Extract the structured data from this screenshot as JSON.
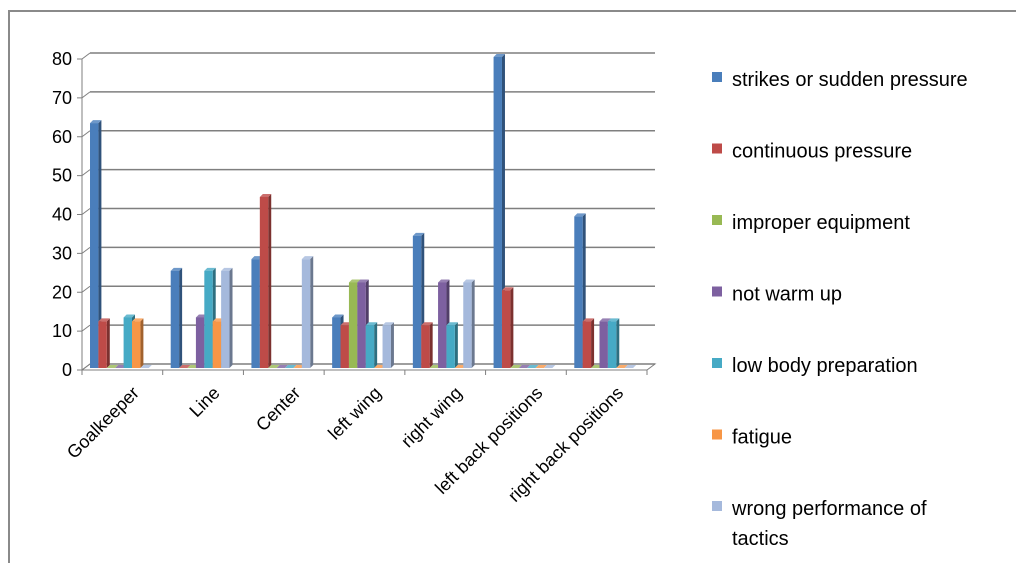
{
  "chart_data": {
    "type": "bar",
    "categories": [
      "Goalkeeper",
      "Line",
      "Center",
      "left wing",
      "right wing",
      "left back positions",
      "right back positions"
    ],
    "ylim": [
      0,
      80
    ],
    "yticks": [
      0,
      10,
      20,
      30,
      40,
      50,
      60,
      70,
      80
    ],
    "grid": true,
    "legend_position": "right",
    "series": [
      {
        "name": "strikes or sudden pressure",
        "color": "#4a7ebb",
        "values": [
          63,
          25,
          28,
          13,
          34,
          80,
          39
        ]
      },
      {
        "name": " continuous pressure",
        "color": "#be4b48",
        "values": [
          12,
          0,
          44,
          11,
          11,
          20,
          12
        ]
      },
      {
        "name": "improper equipment",
        "color": "#98b954",
        "values": [
          0,
          0,
          0,
          22,
          0,
          0,
          0
        ]
      },
      {
        "name": "not warm up",
        "color": "#7d60a0",
        "values": [
          0,
          13,
          0,
          22,
          22,
          0,
          12
        ]
      },
      {
        "name": "low body preparation",
        "color": "#46aac5",
        "values": [
          13,
          25,
          0,
          11,
          11,
          0,
          12
        ]
      },
      {
        "name": "fatigue",
        "color": "#f79646",
        "values": [
          12,
          12,
          0,
          0,
          0,
          0,
          0
        ]
      },
      {
        "name": " wrong performance of tactics",
        "color": "#a5b9dc",
        "values": [
          0,
          25,
          28,
          11,
          22,
          0,
          0
        ]
      }
    ]
  }
}
